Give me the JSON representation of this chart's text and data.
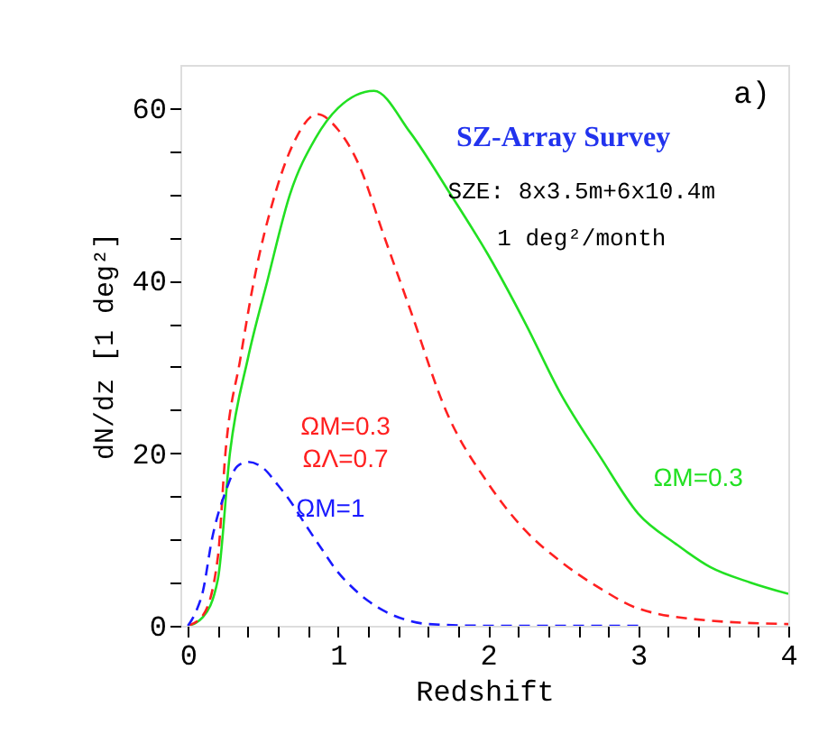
{
  "chart_data": {
    "type": "line",
    "xlabel": "Redshift",
    "ylabel": "dN/dz [1 deg²]",
    "annotations": [
      "a)",
      "SZ-Array Survey",
      "SZE: 8x3.5m+6x10.4m",
      "1 deg²/month"
    ],
    "xlim": [
      -0.05,
      4
    ],
    "ylim": [
      0,
      65
    ],
    "xticks": [
      0,
      {
        "value": 0.2,
        "label": null
      },
      {
        "value": 0.4,
        "label": null
      },
      {
        "value": 0.6,
        "label": null
      },
      {
        "value": 0.8,
        "label": null
      },
      1,
      {
        "value": 1.2,
        "label": null
      },
      {
        "value": 1.4,
        "label": null
      },
      {
        "value": 1.6,
        "label": null
      },
      {
        "value": 1.8,
        "label": null
      },
      2,
      {
        "value": 2.2,
        "label": null
      },
      {
        "value": 2.4,
        "label": null
      },
      {
        "value": 2.6,
        "label": null
      },
      {
        "value": 2.8,
        "label": null
      },
      3,
      {
        "value": 3.2,
        "label": null
      },
      {
        "value": 3.4,
        "label": null
      },
      {
        "value": 3.6,
        "label": null
      },
      {
        "value": 3.8,
        "label": null
      },
      4
    ],
    "yticks": [
      0,
      {
        "value": 5,
        "label": null
      },
      {
        "value": 10,
        "label": null
      },
      {
        "value": 15,
        "label": null
      },
      20,
      {
        "value": 25,
        "label": null
      },
      {
        "value": 30,
        "label": null
      },
      {
        "value": 35,
        "label": null
      },
      40,
      {
        "value": 45,
        "label": null
      },
      {
        "value": 50,
        "label": null
      },
      {
        "value": 55,
        "label": null
      },
      60
    ],
    "grid": false,
    "legend": false,
    "series": [
      {
        "name": "ΩM=0.3",
        "color": "#22e022",
        "line_style": "solid",
        "x": [
          0,
          0.1,
          0.2,
          0.28,
          0.4,
          0.53,
          0.68,
          0.85,
          1.0,
          1.24,
          1.48,
          1.75,
          2.0,
          2.25,
          2.48,
          2.75,
          3.0,
          3.25,
          3.48,
          3.75,
          4.0
        ],
        "values": [
          0,
          1,
          5.4,
          20,
          31,
          40,
          50,
          56.5,
          60,
          62,
          57.2,
          50,
          43,
          35,
          27,
          19.5,
          13,
          9.5,
          6.8,
          5,
          3.7
        ]
      },
      {
        "name": "ΩM=0.3 ΩΛ=0.7",
        "color": "#ff2020",
        "line_style": "dashed",
        "x": [
          0,
          0.1,
          0.2,
          0.25,
          0.35,
          0.44,
          0.58,
          0.72,
          0.86,
          1.0,
          1.14,
          1.3,
          1.48,
          1.72,
          2.0,
          2.25,
          2.48,
          2.75,
          3.0,
          3.48,
          4.0
        ],
        "values": [
          0,
          1.2,
          8,
          20,
          31,
          40,
          50,
          56.5,
          59.3,
          57.5,
          53.4,
          45.5,
          36.7,
          24.9,
          16.5,
          11,
          7.5,
          4.3,
          2,
          0.6,
          0.2
        ]
      },
      {
        "name": "ΩM=1",
        "color": "#1a1aff",
        "line_style": "dashed",
        "x": [
          0,
          0.05,
          0.1,
          0.16,
          0.25,
          0.33,
          0.4,
          0.5,
          0.6,
          0.68,
          0.78,
          0.88,
          1.0,
          1.08,
          1.2,
          1.32,
          1.45,
          1.6,
          2.0,
          3.0
        ],
        "values": [
          0,
          1.5,
          4,
          10,
          15.5,
          18.5,
          19,
          18.3,
          16.3,
          14.5,
          11.8,
          9.2,
          6.2,
          4.7,
          2.9,
          1.6,
          0.7,
          0.2,
          0,
          0
        ]
      }
    ]
  }
}
